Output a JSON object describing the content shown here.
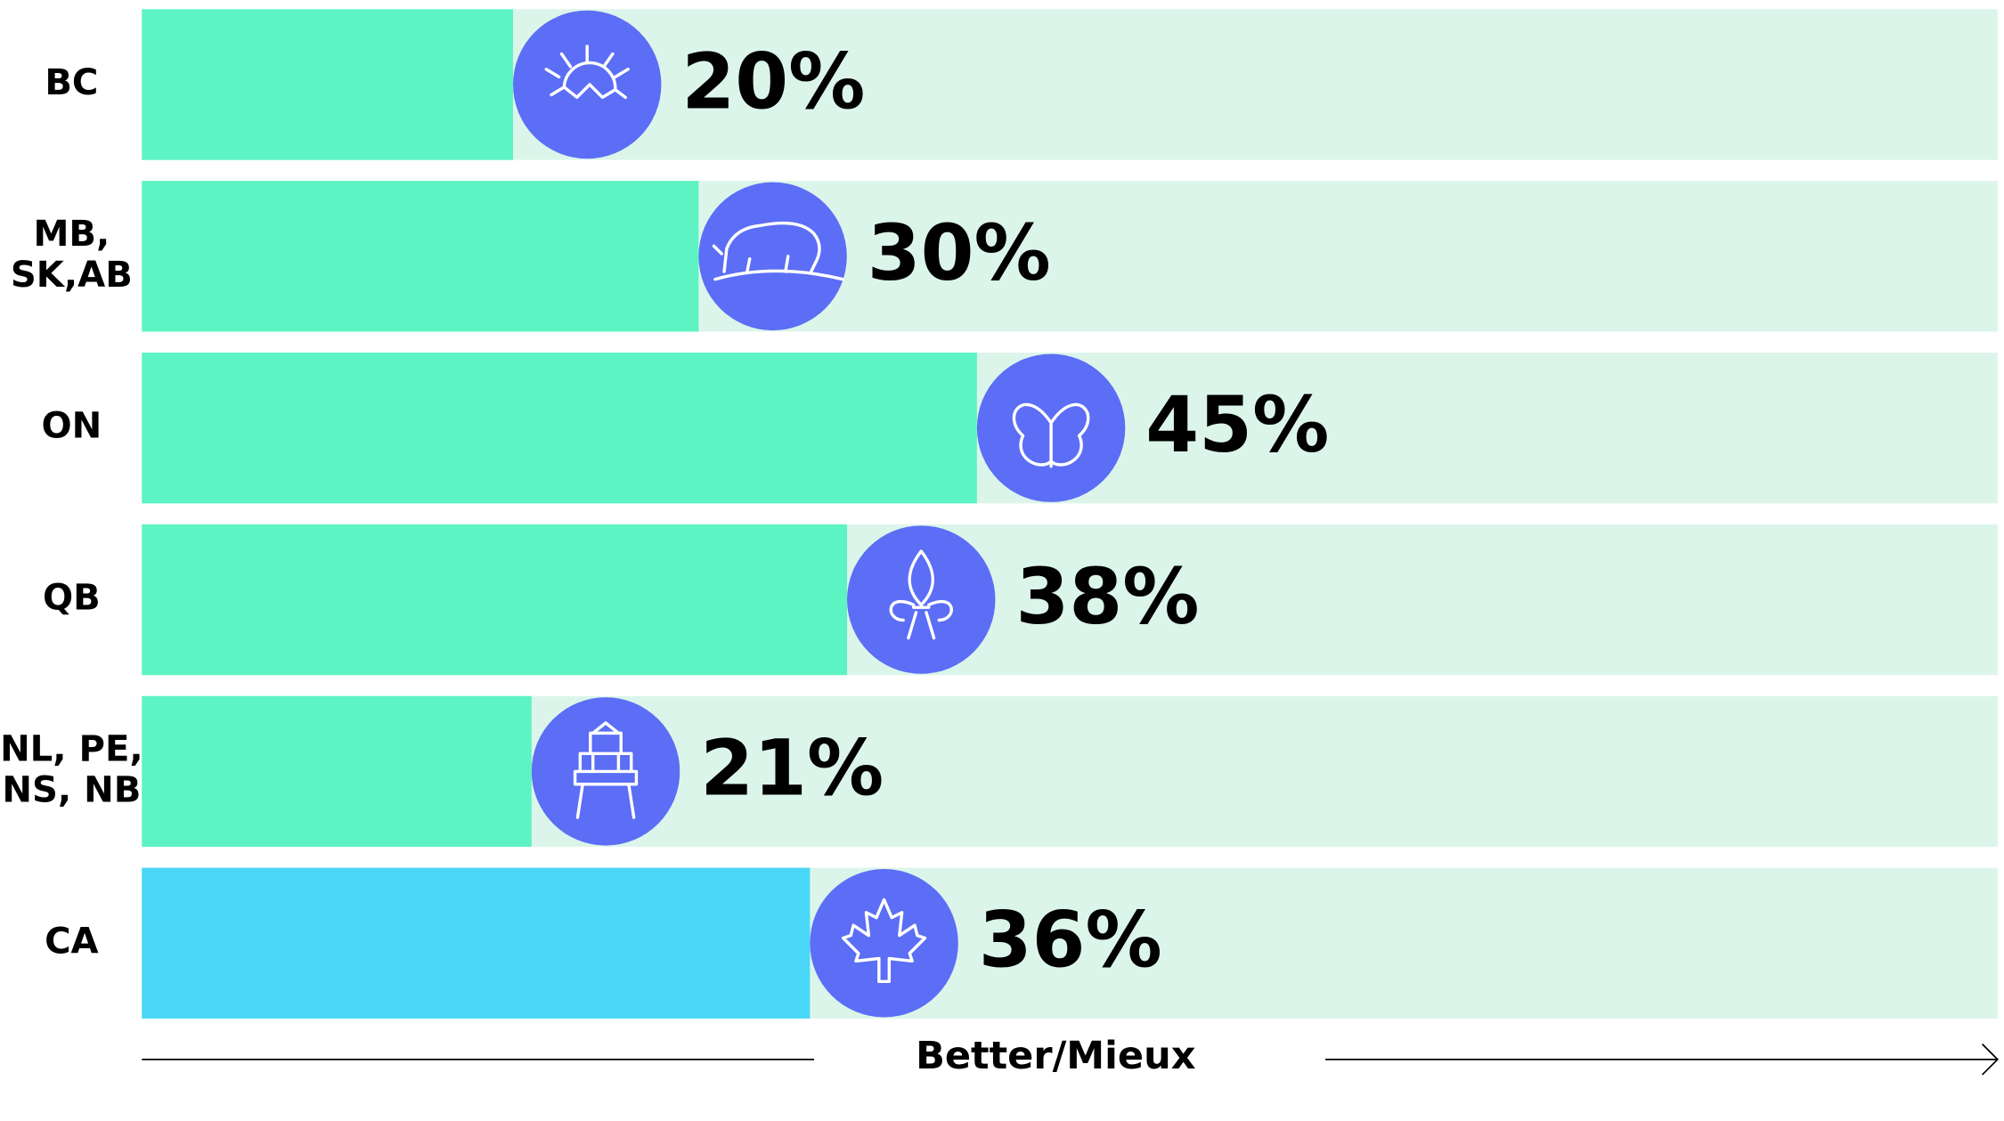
{
  "chart_data": {
    "type": "bar",
    "orientation": "horizontal",
    "categories": [
      [
        "BC"
      ],
      [
        "MB,",
        "SK,AB"
      ],
      [
        "ON"
      ],
      [
        "QB"
      ],
      [
        "NL, PE,",
        "NS, NB"
      ],
      [
        "CA"
      ]
    ],
    "values": [
      20,
      30,
      45,
      38,
      21,
      36
    ],
    "value_labels": [
      "20%",
      "30%",
      "45%",
      "38%",
      "21%",
      "36%"
    ],
    "colors": [
      "#5ef3c3",
      "#5ef3c3",
      "#5ef3c3",
      "#5ef3c3",
      "#5ef3c3",
      "#4ad7f7"
    ],
    "track_color": "#dcf5ea",
    "icon_color": "#5b6ef5",
    "xlim": [
      0,
      100
    ],
    "xlabel": "Better/Mieux"
  }
}
